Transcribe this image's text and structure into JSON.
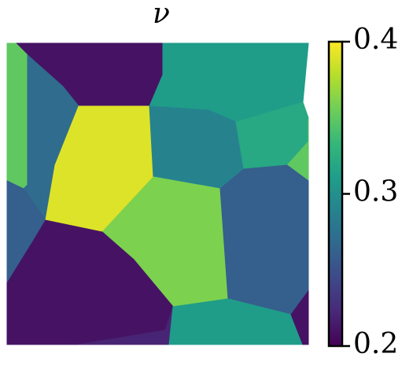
{
  "chart_data": {
    "type": "image",
    "title": "ν",
    "colormap": "viridis",
    "values": [
      0.21,
      0.35,
      0.27,
      0.26,
      0.39,
      0.31,
      0.29,
      0.32,
      0.35,
      0.36,
      0.26,
      0.21,
      0.22,
      0.31,
      0.21
    ],
    "clim": [
      0.2,
      0.4
    ],
    "cticks": [
      0.2,
      0.3,
      0.4
    ]
  }
}
